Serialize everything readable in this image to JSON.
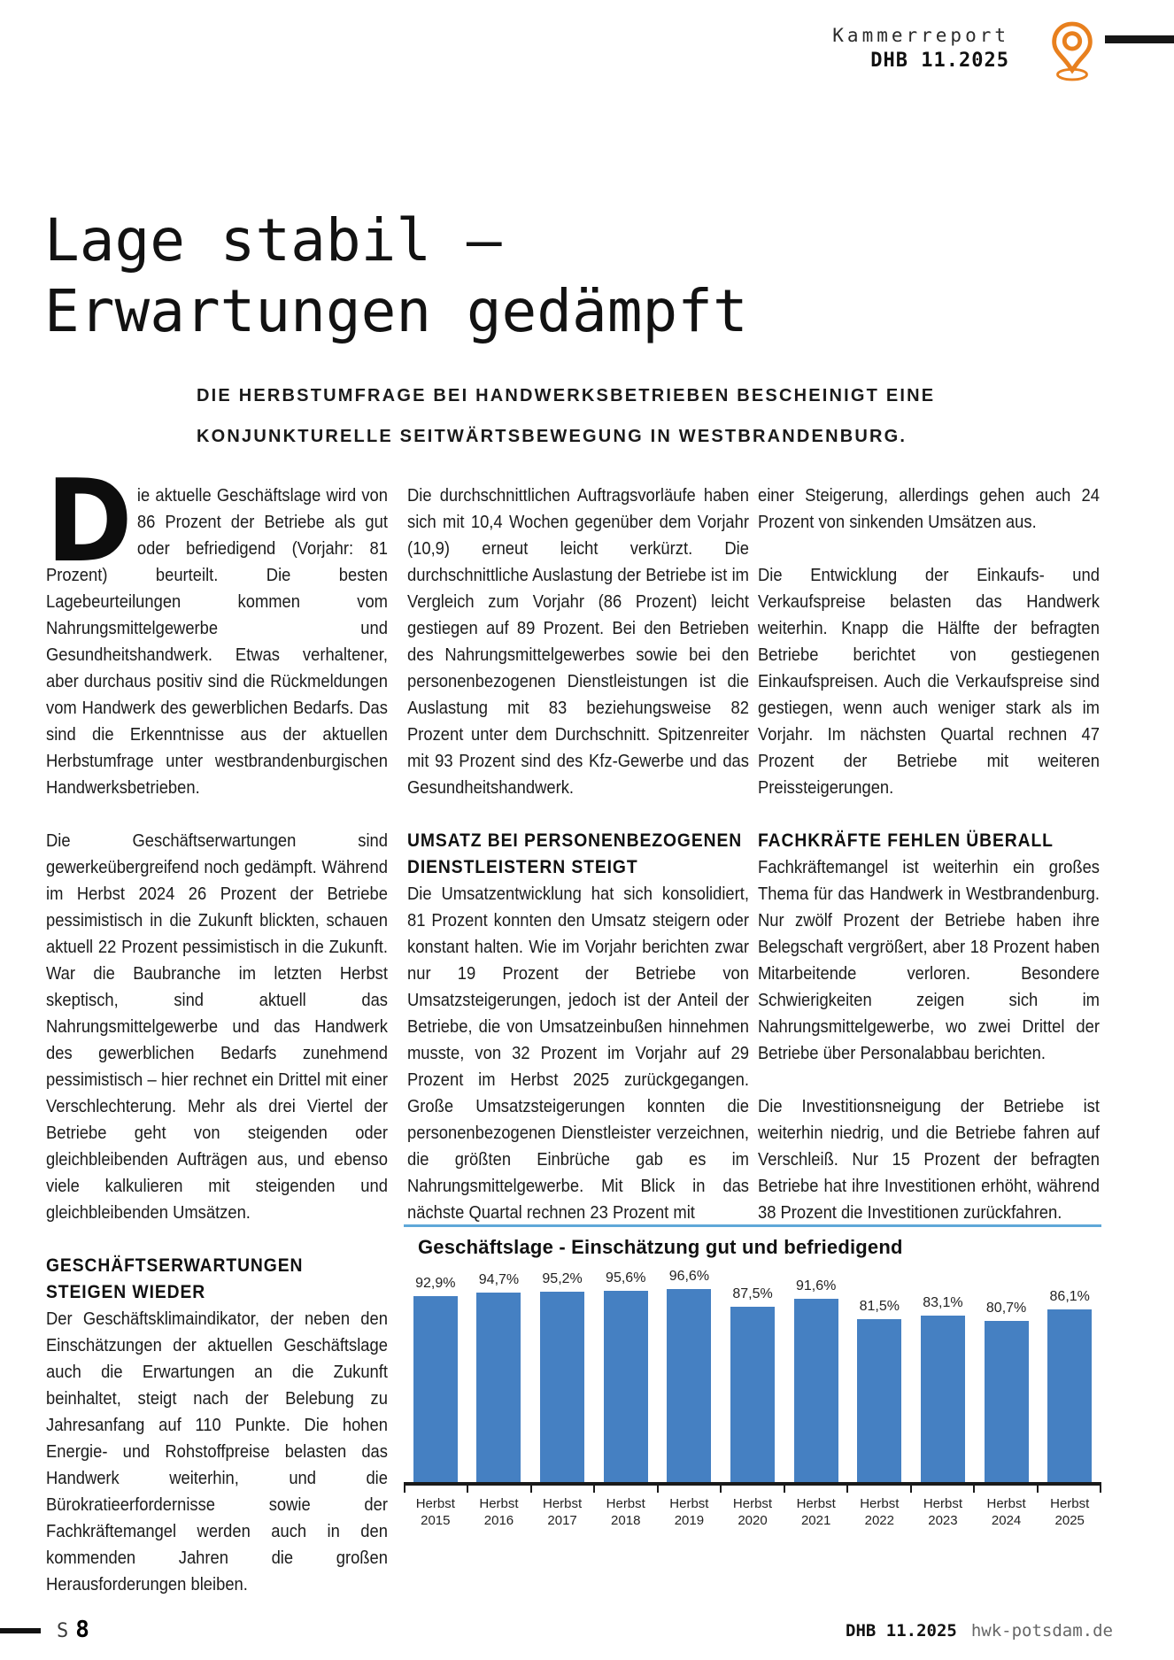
{
  "header": {
    "kicker": "Kammerreport",
    "issue": "DHB 11.2025"
  },
  "headline": {
    "line1": "Lage stabil –",
    "line2": "Erwartungen gedämpft"
  },
  "standfirst": {
    "line1": "DIE HERBSTUMFRAGE BEI HANDWERKSBETRIEBEN BESCHEINIGT EINE",
    "line2": "KONJUNKTURELLE SEITWÄRTSBEWEGUNG IN WESTBRANDENBURG."
  },
  "article": {
    "col1": {
      "dropcap": "D",
      "p1": "ie aktuelle Geschäftslage wird von 86 Prozent der Betriebe als gut oder befriedigend (Vorjahr: 81 Prozent) beurteilt. Die besten Lagebeurteilungen kommen vom Nahrungsmittelgewerbe und Gesundheitshandwerk. Etwas verhaltener, aber durchaus positiv sind die Rückmeldungen vom Handwerk des gewerblichen Bedarfs. Das sind die Erkenntnisse aus der aktuellen Herbstumfrage unter westbrandenburgischen Handwerksbetrieben.",
      "p2": "Die Geschäftserwartungen sind gewerkeübergreifend noch gedämpft. Während im Herbst 2024 26 Prozent der Betriebe pessimistisch in die Zukunft blickten, schauen aktuell 22 Prozent pessimistisch in die Zukunft. War die Baubranche im letzten Herbst skeptisch, sind aktuell das Nahrungsmittelgewerbe und das Handwerk des gewerblichen Bedarfs zunehmend pessimistisch – hier rechnet ein Drittel mit einer Verschlechterung. Mehr als drei Viertel der Betriebe geht von steigenden oder gleichbleibenden Aufträgen aus, und ebenso viele kalkulieren mit steigenden und gleichbleibenden Umsätzen.",
      "h1": "GESCHÄFTSERWARTUNGEN STEIGEN WIEDER",
      "p3": "Der Geschäftsklimaindikator, der neben den Einschätzungen der aktuellen Geschäftslage auch die Erwartungen an die Zukunft beinhaltet, steigt nach der Belebung zu Jahresanfang auf 110 Punkte. Die hohen Energie- und Rohstoffpreise belasten das Handwerk weiterhin, und die Bürokratieerfordernisse sowie der Fachkräftemangel werden auch in den kommenden Jahren die großen Herausforderungen bleiben."
    },
    "col2": {
      "p1": "Die durchschnittlichen Auftragsvorläufe haben sich mit 10,4 Wochen gegenüber dem Vorjahr (10,9) erneut leicht verkürzt. Die durchschnittliche Auslastung der Betriebe ist im Vergleich zum Vorjahr (86 Prozent) leicht gestiegen auf 89 Prozent. Bei den Betrieben des Nahrungsmittelgewerbes sowie bei den personenbezogenen Dienstleistungen ist die Auslastung mit 83 beziehungsweise 82 Prozent unter dem Durchschnitt. Spitzenreiter mit 93 Prozent sind des Kfz-Gewerbe und das Gesundheitshandwerk.",
      "h1": "UMSATZ BEI PERSONENBEZOGENEN DIENSTLEISTERN STEIGT",
      "p2": "Die Umsatzentwicklung hat sich konsolidiert, 81 Prozent konnten den Umsatz steigern oder konstant halten. Wie im Vorjahr berichten zwar nur 19 Prozent der Betriebe von Umsatzsteigerungen, jedoch ist der Anteil der Betriebe, die von Umsatzeinbußen hinnehmen musste, von 32 Prozent im Vorjahr auf 29 Prozent im Herbst 2025 zurückgegangen. Große Umsatzsteigerungen konnten die personenbezogenen Dienstleister verzeichnen, die größten Einbrüche gab es im Nahrungsmittelgewerbe. Mit Blick in das nächste Quartal rechnen 23 Prozent mit"
    },
    "col3": {
      "p1": "einer Steigerung, allerdings gehen auch 24 Prozent von sinkenden Umsätzen aus.",
      "p2": "Die Entwicklung der Einkaufs- und Verkaufspreise belasten das Handwerk weiterhin. Knapp die Hälfte der befragten Betriebe berichtet von gestiegenen Einkaufspreisen. Auch die Verkaufspreise sind gestiegen, wenn auch weniger stark als im Vorjahr. Im nächsten Quartal rechnen 47 Prozent der Betriebe mit weiteren Preissteigerungen.",
      "h1": "FACHKRÄFTE FEHLEN ÜBERALL",
      "p3": "Fachkräftemangel ist weiterhin ein großes Thema für das Handwerk in Westbrandenburg. Nur zwölf Prozent der Betriebe haben ihre Belegschaft vergrößert, aber 18 Prozent haben Mitarbeitende verloren. Besondere Schwierigkeiten zeigen sich im Nahrungsmittelgewerbe, wo zwei Drittel der Betriebe über Personalabbau berichten.",
      "p4": "Die Investitionsneigung der Betriebe ist weiterhin niedrig, und die Betriebe fahren auf Verschleiß. Nur 15 Prozent der befragten Betriebe hat ihre Investitionen erhöht, während 38 Prozent die Investitionen zurückfahren."
    }
  },
  "chart_data": {
    "type": "bar",
    "title": "Geschäftslage - Einschätzung gut und befriedigend",
    "categories": [
      "Herbst 2015",
      "Herbst 2016",
      "Herbst 2017",
      "Herbst 2018",
      "Herbst 2019",
      "Herbst 2020",
      "Herbst 2021",
      "Herbst 2022",
      "Herbst 2023",
      "Herbst 2024",
      "Herbst 2025"
    ],
    "values": [
      92.9,
      94.7,
      95.2,
      95.6,
      96.6,
      87.5,
      91.6,
      81.5,
      83.1,
      80.7,
      86.1
    ],
    "value_labels": [
      "92,9%",
      "94,7%",
      "95,2%",
      "95,6%",
      "96,6%",
      "87,5%",
      "91,6%",
      "81,5%",
      "83,1%",
      "80,7%",
      "86,1%"
    ],
    "unit": "%",
    "xlabel": "",
    "ylabel": "",
    "ylim": [
      0,
      100
    ],
    "grid": false,
    "legend": "none",
    "bar_color": "#4580C2"
  },
  "footer": {
    "page_label": "S",
    "page_number": "8",
    "issue": "DHB 11.2025",
    "website": "hwk-potsdam.de"
  },
  "colors": {
    "accent_orange": "#E8801E",
    "bar_blue": "#4580C2",
    "rule_blue": "#5FA8D8",
    "text": "#1B1B1B"
  }
}
